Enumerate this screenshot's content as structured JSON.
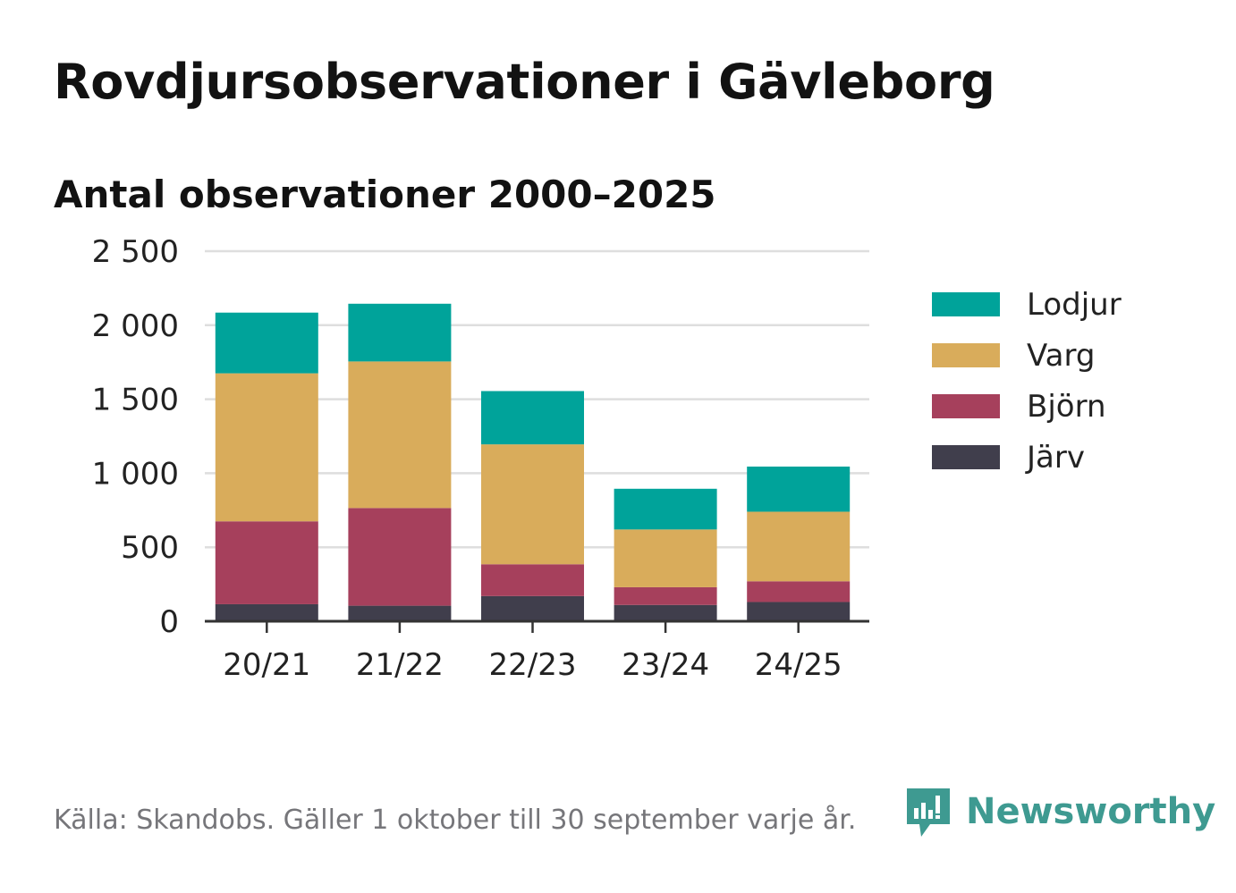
{
  "title": "Rovdjursobservationer i Gävleborg",
  "subtitle": "Antal observationer 2000–2025",
  "footer": "Källa: Skandobs. Gäller 1 oktober till 30 september varje år.",
  "logo": {
    "text": "Newsworthy",
    "icon": "newsworthy-logo-icon",
    "color": "#3e9a91"
  },
  "chart_data": {
    "type": "bar",
    "stacked": true,
    "title": "Antal observationer 2000–2025",
    "xlabel": "",
    "ylabel": "",
    "ylim": [
      0,
      2500
    ],
    "yticks": [
      0,
      500,
      1000,
      1500,
      2000,
      2500
    ],
    "ytick_labels": [
      "0",
      "500",
      "1 000",
      "1 500",
      "2 000",
      "2 500"
    ],
    "grid": true,
    "legend_position": "right",
    "categories": [
      "20/21",
      "21/22",
      "22/23",
      "23/24",
      "24/25"
    ],
    "series": [
      {
        "name": "Järv",
        "color": "#403e4c",
        "values": [
          115,
          105,
          170,
          110,
          130
        ]
      },
      {
        "name": "Björn",
        "color": "#a6405c",
        "values": [
          560,
          660,
          215,
          120,
          140
        ]
      },
      {
        "name": "Varg",
        "color": "#d9ac5b",
        "values": [
          1000,
          990,
          810,
          390,
          470
        ]
      },
      {
        "name": "Lodjur",
        "color": "#00a39a",
        "values": [
          410,
          390,
          360,
          275,
          305
        ]
      }
    ]
  }
}
